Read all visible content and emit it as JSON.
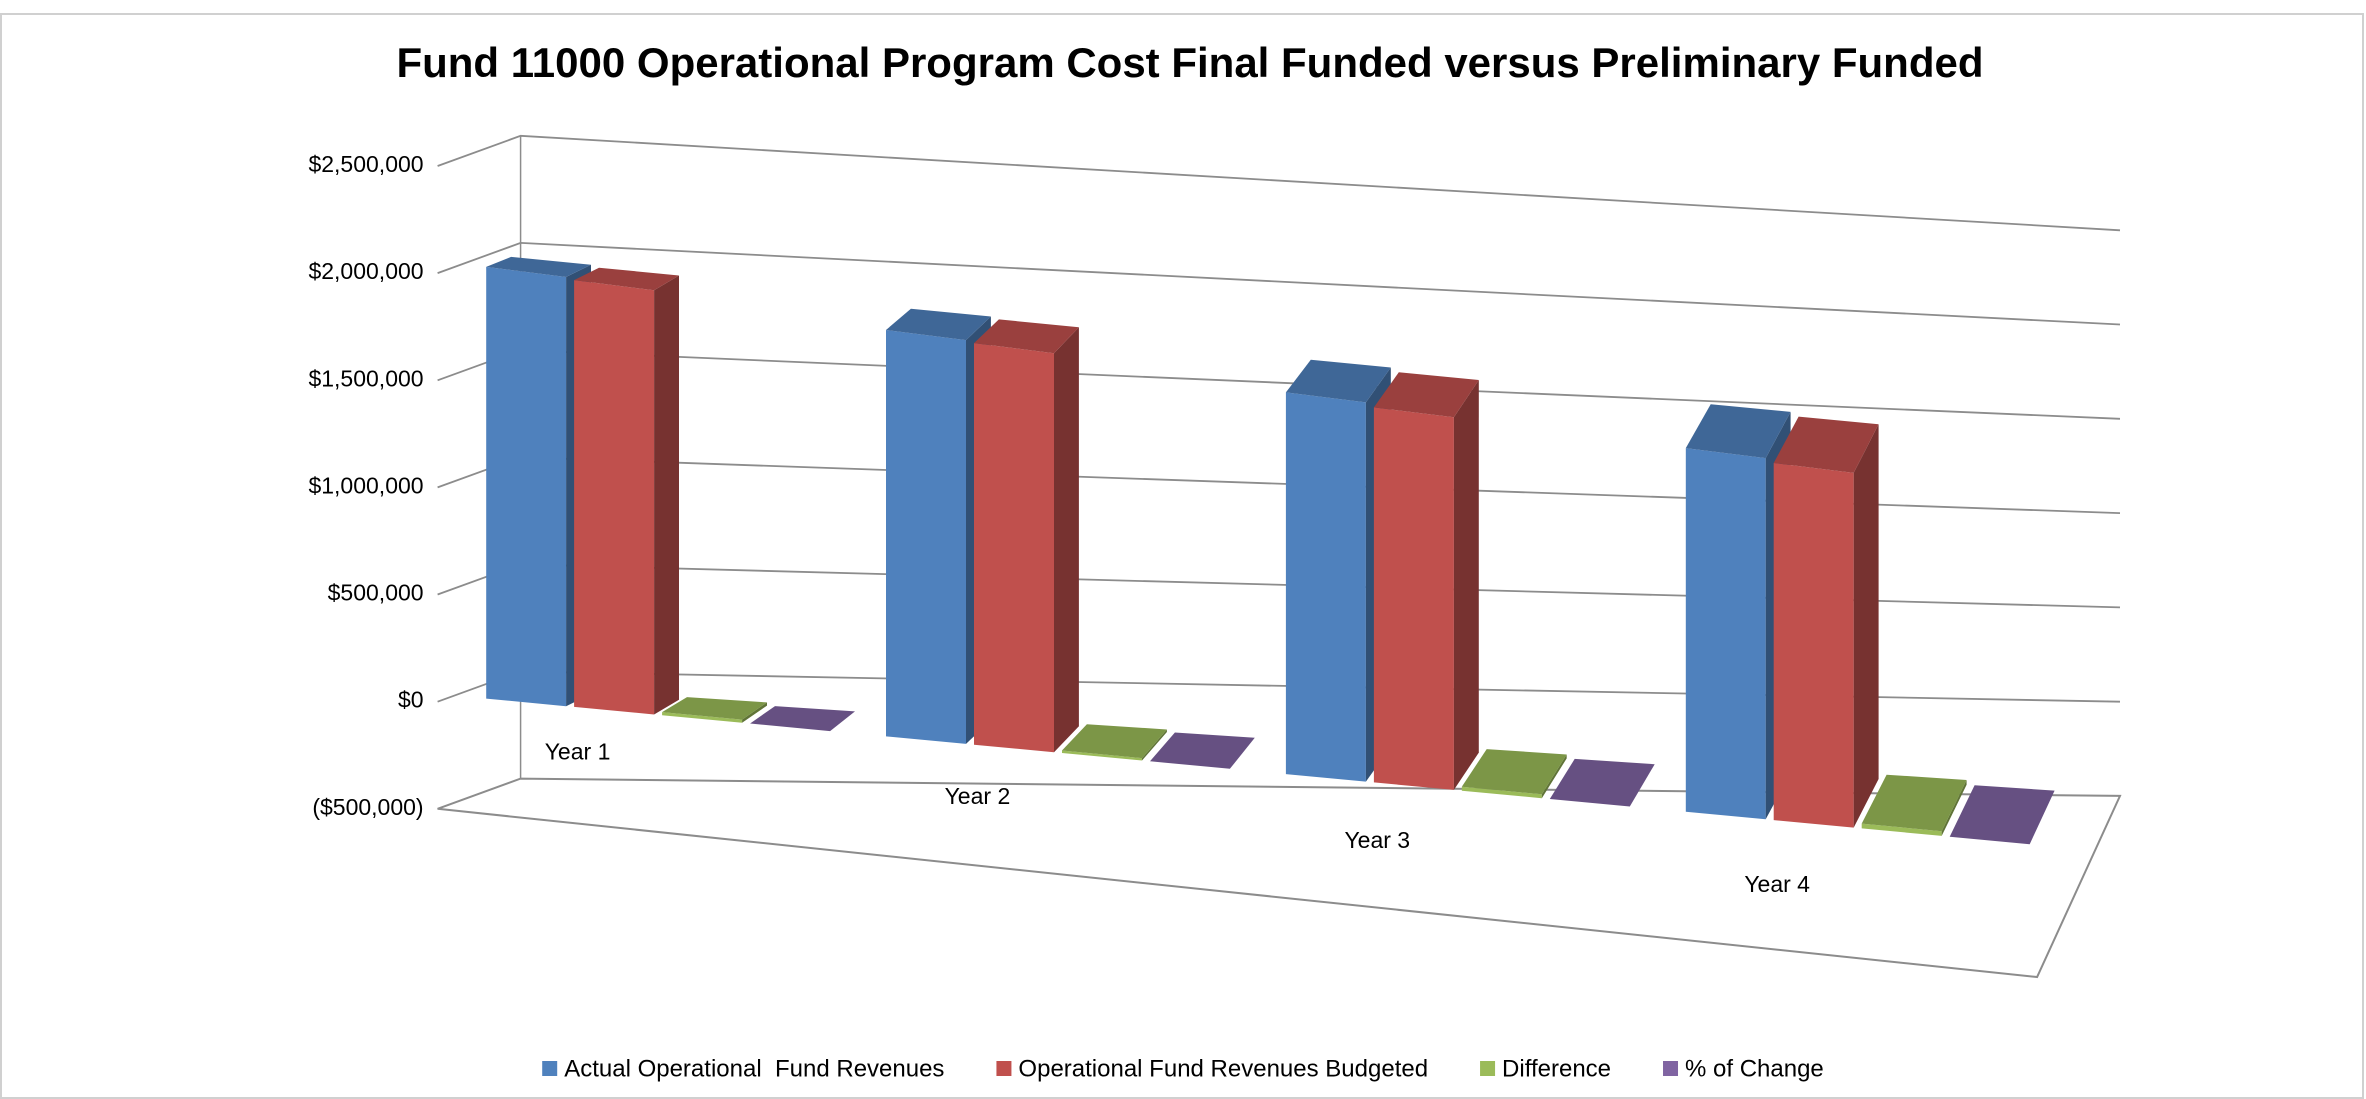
{
  "chart_data": {
    "type": "bar3d",
    "title": "Fund 11000 Operational Program Cost Final Funded versus Preliminary Funded",
    "categories": [
      "Year 1",
      "Year 2",
      "Year 3",
      "Year 4"
    ],
    "series": [
      {
        "name": "Actual Operational  Fund Revenues",
        "color": "#4f81bd",
        "values": [
          2020000,
          1960000,
          1900000,
          1870000
        ]
      },
      {
        "name": "Operational Fund Revenues Budgeted",
        "color": "#c0504d",
        "values": [
          2010000,
          1950000,
          1880000,
          1850000
        ]
      },
      {
        "name": "Difference",
        "color": "#9bbb59",
        "values": [
          15000,
          12000,
          20000,
          25000
        ]
      },
      {
        "name": "% of Change",
        "color": "#8064a2",
        "values": [
          1,
          1,
          1,
          1
        ]
      }
    ],
    "ylim": [
      -500000,
      2500000
    ],
    "yticks": [
      {
        "value": -500000,
        "label": "($500,000)"
      },
      {
        "value": 0,
        "label": "$0"
      },
      {
        "value": 500000,
        "label": "$500,000"
      },
      {
        "value": 1000000,
        "label": "$1,000,000"
      },
      {
        "value": 1500000,
        "label": "$1,500,000"
      },
      {
        "value": 2000000,
        "label": "$2,000,000"
      },
      {
        "value": 2500000,
        "label": "$2,500,000"
      }
    ],
    "grid": true,
    "legend": "bottom"
  }
}
